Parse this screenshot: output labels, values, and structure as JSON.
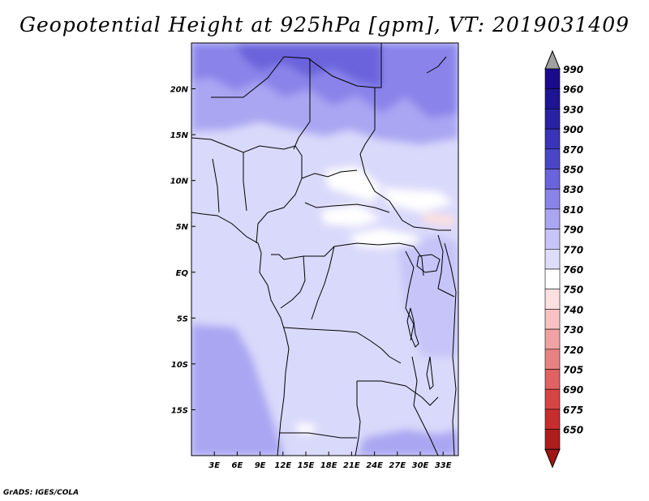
{
  "title": "Geopotential Height at 925hPa [gpm], VT: 2019031409",
  "credit": "GrADS: IGES/COLA",
  "map": {
    "lon_range": [
      0,
      35
    ],
    "lat_range": [
      -20,
      25
    ],
    "x_ticks": [
      {
        "value": 3,
        "label": "3E"
      },
      {
        "value": 6,
        "label": "6E"
      },
      {
        "value": 9,
        "label": "9E"
      },
      {
        "value": 12,
        "label": "12E"
      },
      {
        "value": 15,
        "label": "15E"
      },
      {
        "value": 18,
        "label": "18E"
      },
      {
        "value": 21,
        "label": "21E"
      },
      {
        "value": 24,
        "label": "24E"
      },
      {
        "value": 27,
        "label": "27E"
      },
      {
        "value": 30,
        "label": "30E"
      },
      {
        "value": 33,
        "label": "33E"
      }
    ],
    "y_ticks": [
      {
        "value": 20,
        "label": "20N"
      },
      {
        "value": 15,
        "label": "15N"
      },
      {
        "value": 10,
        "label": "10N"
      },
      {
        "value": 5,
        "label": "5N"
      },
      {
        "value": 0,
        "label": "EQ"
      },
      {
        "value": -5,
        "label": "5S"
      },
      {
        "value": -10,
        "label": "10S"
      },
      {
        "value": -15,
        "label": "15S"
      }
    ]
  },
  "colorbar": {
    "levels": [
      {
        "label": "990",
        "color": "#1a0a8c"
      },
      {
        "label": "960",
        "color": "#1e1494"
      },
      {
        "label": "930",
        "color": "#2a22a4"
      },
      {
        "label": "900",
        "color": "#3a34b8"
      },
      {
        "label": "870",
        "color": "#4a46c8"
      },
      {
        "label": "850",
        "color": "#6a64dc"
      },
      {
        "label": "830",
        "color": "#8a84ea"
      },
      {
        "label": "810",
        "color": "#aaa6f2"
      },
      {
        "label": "790",
        "color": "#c6c4f8"
      },
      {
        "label": "770",
        "color": "#dedefc"
      },
      {
        "label": "760",
        "color": "#ffffff"
      },
      {
        "label": "750",
        "color": "#fde0e0"
      },
      {
        "label": "740",
        "color": "#f8c2c2"
      },
      {
        "label": "730",
        "color": "#f0a2a2"
      },
      {
        "label": "720",
        "color": "#e88282"
      },
      {
        "label": "705",
        "color": "#e06262"
      },
      {
        "label": "690",
        "color": "#d84444"
      },
      {
        "label": "675",
        "color": "#c82c2c"
      },
      {
        "label": "650",
        "color": "#b01c1c"
      }
    ],
    "over_color": "#a0a0a0",
    "under_color": "#a01414"
  }
}
